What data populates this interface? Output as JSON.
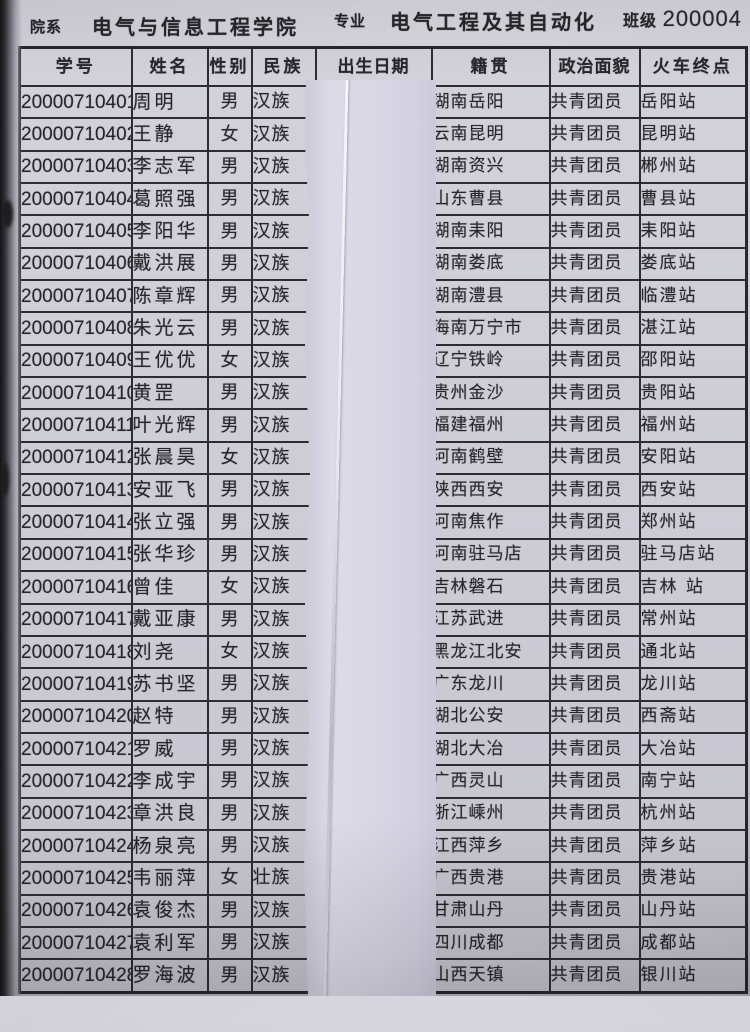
{
  "form_header": {
    "department_label": "院系",
    "department_value": "电气与信息工程学院",
    "major_label": "专业",
    "major_value": "电气工程及其自动化",
    "class_label": "班级",
    "class_value": "200004"
  },
  "table": {
    "columns": [
      "学号",
      "姓名",
      "性别",
      "民族",
      "出生日期",
      "籍贯",
      "政治面貌",
      "火车终点"
    ],
    "rows": [
      [
        "20000710401",
        "周明",
        "男",
        "汉族",
        "",
        "湖南岳阳",
        "共青团员",
        "岳阳站"
      ],
      [
        "20000710402",
        "王静",
        "女",
        "汉族",
        "",
        "云南昆明",
        "共青团员",
        "昆明站"
      ],
      [
        "20000710403",
        "李志军",
        "男",
        "汉族",
        "",
        "湖南资兴",
        "共青团员",
        "郴州站"
      ],
      [
        "20000710404",
        "葛照强",
        "男",
        "汉族",
        "",
        "山东曹县",
        "共青团员",
        "曹县站"
      ],
      [
        "20000710405",
        "李阳华",
        "男",
        "汉族",
        "",
        "湖南耒阳",
        "共青团员",
        "耒阳站"
      ],
      [
        "20000710406",
        "戴洪展",
        "男",
        "汉族",
        "",
        "湖南娄底",
        "共青团员",
        "娄底站"
      ],
      [
        "20000710407",
        "陈章辉",
        "男",
        "汉族",
        "",
        "湖南澧县",
        "共青团员",
        "临澧站"
      ],
      [
        "20000710408",
        "朱光云",
        "男",
        "汉族",
        "",
        "海南万宁市",
        "共青团员",
        "湛江站"
      ],
      [
        "20000710409",
        "王优优",
        "女",
        "汉族",
        "",
        "辽宁铁岭",
        "共青团员",
        "邵阳站"
      ],
      [
        "20000710410",
        "黄罡",
        "男",
        "汉族",
        "",
        "贵州金沙",
        "共青团员",
        "贵阳站"
      ],
      [
        "20000710411",
        "叶光辉",
        "男",
        "汉族",
        "",
        "福建福州",
        "共青团员",
        "福州站"
      ],
      [
        "20000710412",
        "张晨昊",
        "女",
        "汉族",
        "",
        "河南鹤壁",
        "共青团员",
        "安阳站"
      ],
      [
        "20000710413",
        "安亚飞",
        "男",
        "汉族",
        "",
        "陕西西安",
        "共青团员",
        "西安站"
      ],
      [
        "20000710414",
        "张立强",
        "男",
        "汉族",
        "",
        "河南焦作",
        "共青团员",
        "郑州站"
      ],
      [
        "20000710415",
        "张华珍",
        "男",
        "汉族",
        "",
        "河南驻马店",
        "共青团员",
        "驻马店站"
      ],
      [
        "20000710416",
        "曾佳",
        "女",
        "汉族",
        "",
        "吉林磐石",
        "共青团员",
        "吉林 站"
      ],
      [
        "20000710417",
        "戴亚康",
        "男",
        "汉族",
        "",
        "江苏武进",
        "共青团员",
        "常州站"
      ],
      [
        "20000710418",
        "刘尧",
        "女",
        "汉族",
        "",
        "黑龙江北安",
        "共青团员",
        "通北站"
      ],
      [
        "20000710419",
        "苏书坚",
        "男",
        "汉族",
        "",
        "广东龙川",
        "共青团员",
        "龙川站"
      ],
      [
        "20000710420",
        "赵特",
        "男",
        "汉族",
        "",
        "湖北公安",
        "共青团员",
        "西斋站"
      ],
      [
        "20000710421",
        "罗威",
        "男",
        "汉族",
        "",
        "湖北大冶",
        "共青团员",
        "大冶站"
      ],
      [
        "20000710422",
        "李成宇",
        "男",
        "汉族",
        "",
        "广西灵山",
        "共青团员",
        "南宁站"
      ],
      [
        "20000710423",
        "章洪良",
        "男",
        "汉族",
        "",
        "浙江嵊州",
        "共青团员",
        "杭州站"
      ],
      [
        "20000710424",
        "杨泉亮",
        "男",
        "汉族",
        "",
        "江西萍乡",
        "共青团员",
        "萍乡站"
      ],
      [
        "20000710425",
        "韦丽萍",
        "女",
        "壮族",
        "",
        "广西贵港",
        "共青团员",
        "贵港站"
      ],
      [
        "20000710426",
        "袁俊杰",
        "男",
        "汉族",
        "",
        "甘肃山丹",
        "共青团员",
        "山丹站"
      ],
      [
        "20000710427",
        "袁利军",
        "男",
        "汉族",
        "",
        "四川成都",
        "共青团员",
        "成都站"
      ],
      [
        "20000710428",
        "罗海波",
        "男",
        "汉族",
        "",
        "山西天镇",
        "共青团员",
        "银川站"
      ]
    ]
  },
  "colors": {
    "paper": "#c9c8d2",
    "paper_strip": "#d8d7e5",
    "table_line": "#2c2c33",
    "text": "#26262b"
  }
}
